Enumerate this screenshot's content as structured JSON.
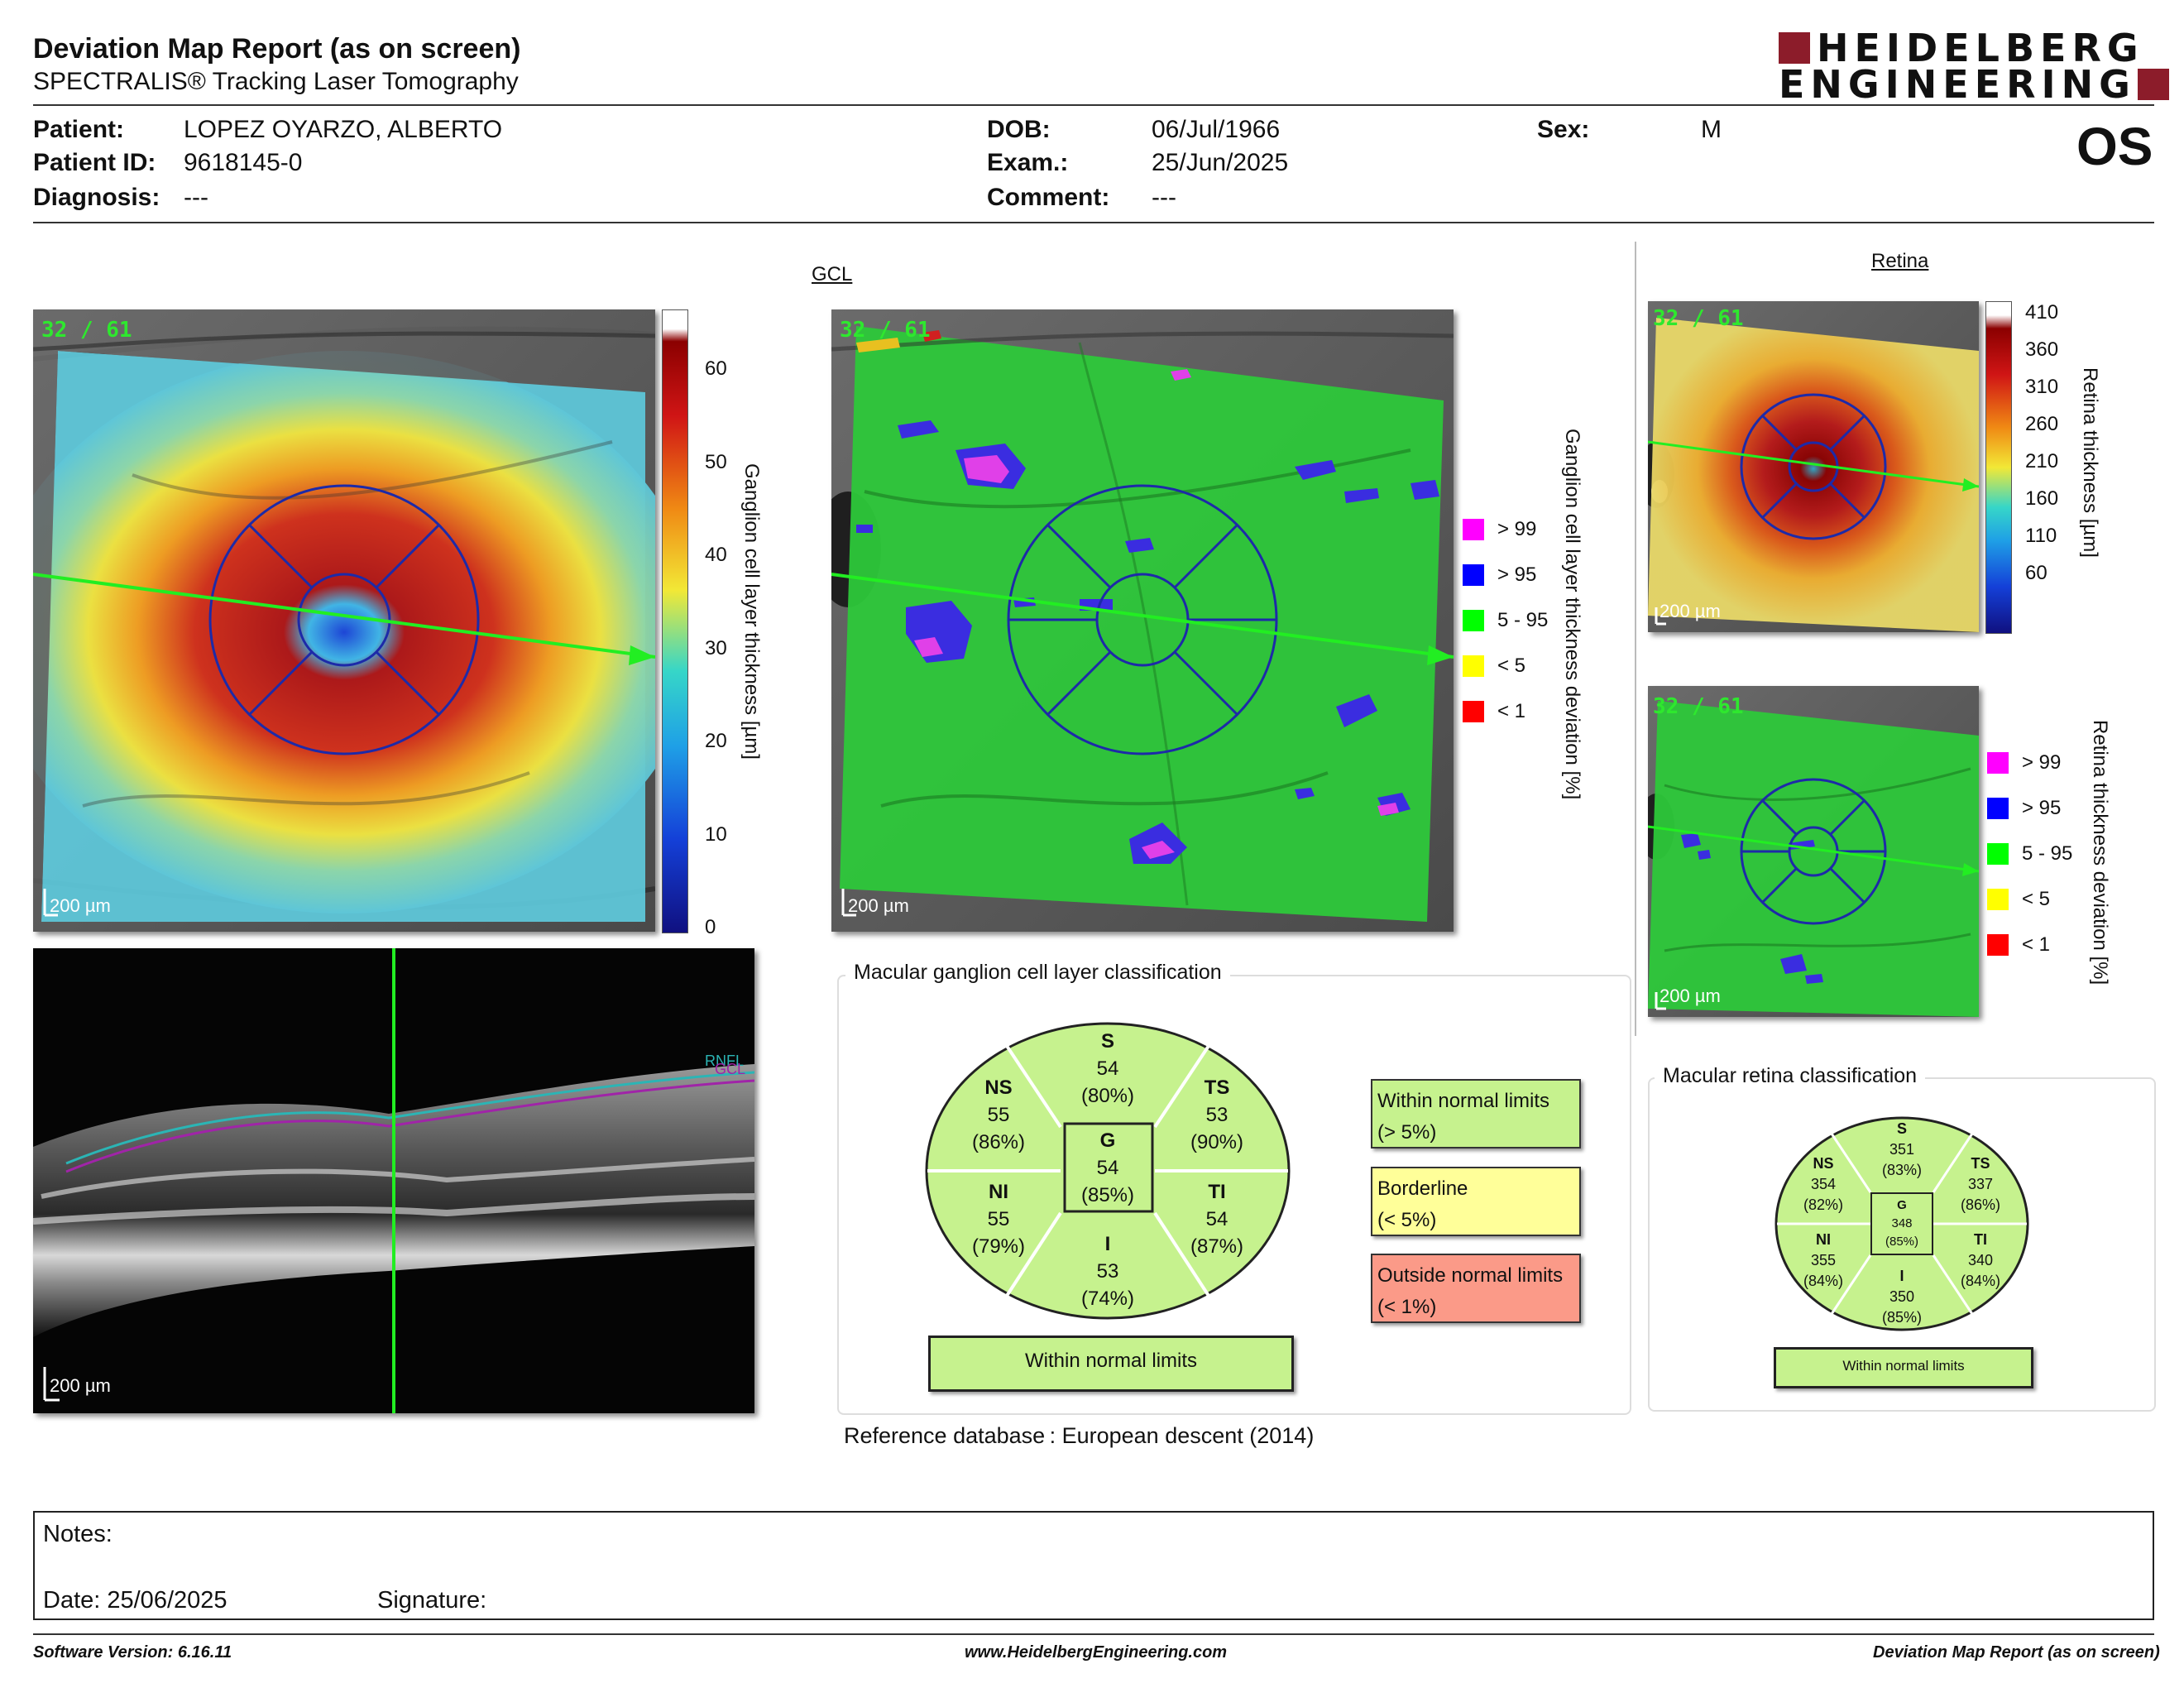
{
  "header": {
    "title": "Deviation Map Report (as on screen)",
    "subtitle": "SPECTRALIS® Tracking Laser Tomography",
    "logo_line1": "HEIDELBERG",
    "logo_line2": "ENGINEERING",
    "eye": "OS"
  },
  "patient": {
    "patient_label": "Patient:",
    "patient_value": "LOPEZ OYARZO, ALBERTO",
    "id_label": "Patient ID:",
    "id_value": "9618145-0",
    "diagnosis_label": "Diagnosis:",
    "diagnosis_value": "---",
    "dob_label": "DOB:",
    "dob_value": "06/Jul/1966",
    "exam_label": "Exam.:",
    "exam_value": "25/Jun/2025",
    "comment_label": "Comment:",
    "comment_value": "---",
    "sex_label": "Sex:",
    "sex_value": "M"
  },
  "gcl": {
    "section_label": "GCL",
    "frame_label": "32 / 61",
    "scale_label": "200 µm",
    "thickness_axis_label": "Ganglion cell layer thickness [µm]",
    "thickness_ticks": [
      "60",
      "50",
      "40",
      "30",
      "20",
      "10",
      "0"
    ],
    "deviation_axis_label": "Ganglion cell layer thickness deviation [%]",
    "deviation_legend": [
      {
        "label": "> 99",
        "color": "#ff00ff"
      },
      {
        "label": "> 95",
        "color": "#0000ff"
      },
      {
        "label": "5 - 95",
        "color": "#00ff00"
      },
      {
        "label": "< 5",
        "color": "#ffff00"
      },
      {
        "label": "< 1",
        "color": "#ff0000"
      }
    ]
  },
  "bscan": {
    "scale_label": "200 µm",
    "layer_label_1": "RNFL",
    "layer_label_2": "GCL"
  },
  "gcl_classification": {
    "title": "Macular ganglion cell layer classification",
    "sectors": {
      "S": {
        "label": "S",
        "value": "54",
        "pct": "(80%)"
      },
      "NS": {
        "label": "NS",
        "value": "55",
        "pct": "(86%)"
      },
      "TS": {
        "label": "TS",
        "value": "53",
        "pct": "(90%)"
      },
      "G": {
        "label": "G",
        "value": "54",
        "pct": "(85%)"
      },
      "NI": {
        "label": "NI",
        "value": "55",
        "pct": "(79%)"
      },
      "TI": {
        "label": "TI",
        "value": "54",
        "pct": "(87%)"
      },
      "I": {
        "label": "I",
        "value": "53",
        "pct": "(74%)"
      }
    },
    "result": "Within normal limits",
    "legend": [
      {
        "line1": "Within normal limits",
        "line2": "(> 5%)",
        "color": "#c6f28e"
      },
      {
        "line1": "Borderline",
        "line2": "(< 5%)",
        "color": "#ffff99"
      },
      {
        "line1": "Outside normal limits",
        "line2": "(< 1%)",
        "color": "#fb9a88"
      }
    ],
    "reference_label": "Reference database :",
    "reference_value": "European descent (2014)"
  },
  "retina": {
    "section_label": "Retina",
    "frame_label": "32 / 61",
    "scale_label": "200 µm",
    "thickness_axis_label": "Retina thickness [µm]",
    "thickness_ticks": [
      "410",
      "360",
      "310",
      "260",
      "210",
      "160",
      "110",
      "60"
    ],
    "deviation_axis_label": "Retina thickness deviation [%]",
    "deviation_legend": [
      {
        "label": "> 99",
        "color": "#ff00ff"
      },
      {
        "label": "> 95",
        "color": "#0000ff"
      },
      {
        "label": "5 - 95",
        "color": "#00ff00"
      },
      {
        "label": "< 5",
        "color": "#ffff00"
      },
      {
        "label": "< 1",
        "color": "#ff0000"
      }
    ]
  },
  "retina_classification": {
    "title": "Macular retina classification",
    "sectors": {
      "S": {
        "label": "S",
        "value": "351",
        "pct": "(83%)"
      },
      "NS": {
        "label": "NS",
        "value": "354",
        "pct": "(82%)"
      },
      "TS": {
        "label": "TS",
        "value": "337",
        "pct": "(86%)"
      },
      "G": {
        "label": "G",
        "value": "348",
        "pct": "(85%)"
      },
      "NI": {
        "label": "NI",
        "value": "355",
        "pct": "(84%)"
      },
      "TI": {
        "label": "TI",
        "value": "340",
        "pct": "(84%)"
      },
      "I": {
        "label": "I",
        "value": "350",
        "pct": "(85%)"
      }
    },
    "result": "Within normal limits"
  },
  "notes": {
    "notes_label": "Notes:",
    "date_label": "Date: 25/06/2025",
    "signature_label": "Signature:"
  },
  "footer": {
    "software": "Software Version: 6.16.11",
    "website": "www.HeidelbergEngineering.com",
    "report": "Deviation Map Report (as on screen)"
  }
}
